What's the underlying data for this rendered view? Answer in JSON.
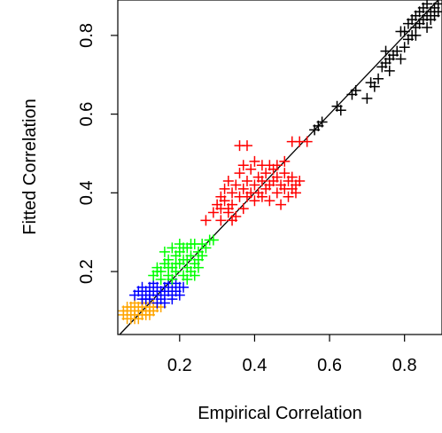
{
  "chart_data": {
    "type": "scatter",
    "title": "",
    "xlabel": "Empirical Correlation",
    "ylabel": "Fitted Correlation",
    "xlim": [
      0.035,
      0.9
    ],
    "ylim": [
      0.04,
      0.89
    ],
    "x_ticks": [
      {
        "value": 0.2,
        "label": "0.2"
      },
      {
        "value": 0.4,
        "label": "0.4"
      },
      {
        "value": 0.6,
        "label": "0.6"
      },
      {
        "value": 0.8,
        "label": "0.8"
      }
    ],
    "y_ticks": [
      {
        "value": 0.2,
        "label": "0.2"
      },
      {
        "value": 0.4,
        "label": "0.4"
      },
      {
        "value": 0.6,
        "label": "0.6"
      },
      {
        "value": 0.8,
        "label": "0.8"
      }
    ],
    "marker": "+",
    "grid": false,
    "legend": "none",
    "reference_line": {
      "slope": 1,
      "intercept": 0,
      "color": "#000000"
    },
    "series": [
      {
        "color": "#FFA500",
        "points": [
          [
            0.05,
            0.09
          ],
          [
            0.06,
            0.1
          ],
          [
            0.06,
            0.08
          ],
          [
            0.07,
            0.09
          ],
          [
            0.07,
            0.11
          ],
          [
            0.08,
            0.1
          ],
          [
            0.08,
            0.09
          ],
          [
            0.09,
            0.1
          ],
          [
            0.09,
            0.08
          ],
          [
            0.1,
            0.09
          ],
          [
            0.1,
            0.11
          ],
          [
            0.11,
            0.1
          ],
          [
            0.11,
            0.09
          ],
          [
            0.12,
            0.1
          ],
          [
            0.12,
            0.11
          ],
          [
            0.13,
            0.1
          ],
          [
            0.13,
            0.12
          ],
          [
            0.14,
            0.11
          ],
          [
            0.08,
            0.12
          ],
          [
            0.1,
            0.12
          ],
          [
            0.06,
            0.11
          ],
          [
            0.09,
            0.11
          ],
          [
            0.11,
            0.12
          ],
          [
            0.07,
            0.08
          ],
          [
            0.12,
            0.09
          ],
          [
            0.05,
            0.1
          ],
          [
            0.13,
            0.11
          ],
          [
            0.08,
            0.08
          ],
          [
            0.15,
            0.11
          ],
          [
            0.1,
            0.1
          ]
        ]
      },
      {
        "color": "#0000FF",
        "points": [
          [
            0.08,
            0.14
          ],
          [
            0.09,
            0.15
          ],
          [
            0.1,
            0.14
          ],
          [
            0.1,
            0.16
          ],
          [
            0.11,
            0.15
          ],
          [
            0.11,
            0.13
          ],
          [
            0.12,
            0.14
          ],
          [
            0.12,
            0.16
          ],
          [
            0.13,
            0.15
          ],
          [
            0.13,
            0.17
          ],
          [
            0.14,
            0.14
          ],
          [
            0.14,
            0.16
          ],
          [
            0.15,
            0.15
          ],
          [
            0.15,
            0.13
          ],
          [
            0.16,
            0.16
          ],
          [
            0.16,
            0.14
          ],
          [
            0.17,
            0.15
          ],
          [
            0.17,
            0.17
          ],
          [
            0.18,
            0.16
          ],
          [
            0.18,
            0.14
          ],
          [
            0.19,
            0.15
          ],
          [
            0.19,
            0.17
          ],
          [
            0.2,
            0.16
          ],
          [
            0.2,
            0.14
          ],
          [
            0.21,
            0.16
          ],
          [
            0.12,
            0.13
          ],
          [
            0.14,
            0.12
          ],
          [
            0.16,
            0.12
          ],
          [
            0.1,
            0.13
          ],
          [
            0.18,
            0.13
          ]
        ]
      },
      {
        "color": "#00FF00",
        "points": [
          [
            0.13,
            0.19
          ],
          [
            0.14,
            0.21
          ],
          [
            0.15,
            0.2
          ],
          [
            0.16,
            0.22
          ],
          [
            0.17,
            0.19
          ],
          [
            0.17,
            0.23
          ],
          [
            0.18,
            0.21
          ],
          [
            0.18,
            0.18
          ],
          [
            0.19,
            0.24
          ],
          [
            0.19,
            0.2
          ],
          [
            0.2,
            0.22
          ],
          [
            0.2,
            0.25
          ],
          [
            0.21,
            0.19
          ],
          [
            0.21,
            0.23
          ],
          [
            0.22,
            0.21
          ],
          [
            0.22,
            0.26
          ],
          [
            0.23,
            0.24
          ],
          [
            0.23,
            0.2
          ],
          [
            0.24,
            0.27
          ],
          [
            0.24,
            0.22
          ],
          [
            0.25,
            0.25
          ],
          [
            0.25,
            0.21
          ],
          [
            0.26,
            0.24
          ],
          [
            0.27,
            0.26
          ],
          [
            0.28,
            0.28
          ],
          [
            0.29,
            0.28
          ],
          [
            0.15,
            0.18
          ],
          [
            0.16,
            0.25
          ],
          [
            0.2,
            0.27
          ],
          [
            0.22,
            0.18
          ],
          [
            0.24,
            0.19
          ],
          [
            0.26,
            0.27
          ],
          [
            0.18,
            0.26
          ],
          [
            0.21,
            0.26
          ],
          [
            0.23,
            0.27
          ],
          [
            0.14,
            0.2
          ],
          [
            0.17,
            0.21
          ],
          [
            0.19,
            0.22
          ],
          [
            0.25,
            0.23
          ],
          [
            0.22,
            0.23
          ]
        ]
      },
      {
        "color": "#FF0000",
        "points": [
          [
            0.27,
            0.33
          ],
          [
            0.29,
            0.35
          ],
          [
            0.3,
            0.37
          ],
          [
            0.31,
            0.39
          ],
          [
            0.31,
            0.33
          ],
          [
            0.32,
            0.41
          ],
          [
            0.32,
            0.38
          ],
          [
            0.33,
            0.36
          ],
          [
            0.33,
            0.43
          ],
          [
            0.34,
            0.4
          ],
          [
            0.34,
            0.37
          ],
          [
            0.35,
            0.42
          ],
          [
            0.35,
            0.34
          ],
          [
            0.36,
            0.39
          ],
          [
            0.36,
            0.45
          ],
          [
            0.37,
            0.41
          ],
          [
            0.37,
            0.36
          ],
          [
            0.38,
            0.43
          ],
          [
            0.38,
            0.39
          ],
          [
            0.39,
            0.4
          ],
          [
            0.39,
            0.46
          ],
          [
            0.4,
            0.42
          ],
          [
            0.4,
            0.38
          ],
          [
            0.41,
            0.44
          ],
          [
            0.41,
            0.4
          ],
          [
            0.42,
            0.47
          ],
          [
            0.42,
            0.43
          ],
          [
            0.43,
            0.41
          ],
          [
            0.43,
            0.45
          ],
          [
            0.44,
            0.38
          ],
          [
            0.44,
            0.47
          ],
          [
            0.45,
            0.43
          ],
          [
            0.45,
            0.46
          ],
          [
            0.46,
            0.4
          ],
          [
            0.46,
            0.44
          ],
          [
            0.47,
            0.42
          ],
          [
            0.47,
            0.37
          ],
          [
            0.48,
            0.45
          ],
          [
            0.48,
            0.41
          ],
          [
            0.49,
            0.43
          ],
          [
            0.49,
            0.39
          ],
          [
            0.5,
            0.44
          ],
          [
            0.5,
            0.41
          ],
          [
            0.51,
            0.42
          ],
          [
            0.51,
            0.4
          ],
          [
            0.52,
            0.43
          ],
          [
            0.36,
            0.52
          ],
          [
            0.38,
            0.52
          ],
          [
            0.5,
            0.53
          ],
          [
            0.52,
            0.53
          ],
          [
            0.54,
            0.53
          ],
          [
            0.34,
            0.33
          ],
          [
            0.42,
            0.39
          ],
          [
            0.4,
            0.48
          ],
          [
            0.44,
            0.42
          ],
          [
            0.46,
            0.47
          ],
          [
            0.31,
            0.36
          ],
          [
            0.33,
            0.35
          ],
          [
            0.48,
            0.48
          ],
          [
            0.37,
            0.47
          ]
        ]
      },
      {
        "color": "#000000",
        "points": [
          [
            0.56,
            0.56
          ],
          [
            0.57,
            0.57
          ],
          [
            0.58,
            0.58
          ],
          [
            0.62,
            0.62
          ],
          [
            0.63,
            0.61
          ],
          [
            0.66,
            0.65
          ],
          [
            0.67,
            0.66
          ],
          [
            0.7,
            0.64
          ],
          [
            0.71,
            0.68
          ],
          [
            0.72,
            0.67
          ],
          [
            0.73,
            0.69
          ],
          [
            0.74,
            0.72
          ],
          [
            0.75,
            0.73
          ],
          [
            0.76,
            0.74
          ],
          [
            0.76,
            0.71
          ],
          [
            0.77,
            0.75
          ],
          [
            0.78,
            0.76
          ],
          [
            0.79,
            0.74
          ],
          [
            0.8,
            0.77
          ],
          [
            0.8,
            0.81
          ],
          [
            0.81,
            0.79
          ],
          [
            0.81,
            0.83
          ],
          [
            0.82,
            0.8
          ],
          [
            0.82,
            0.84
          ],
          [
            0.83,
            0.82
          ],
          [
            0.83,
            0.85
          ],
          [
            0.84,
            0.83
          ],
          [
            0.84,
            0.86
          ],
          [
            0.85,
            0.84
          ],
          [
            0.85,
            0.87
          ],
          [
            0.86,
            0.85
          ],
          [
            0.86,
            0.88
          ],
          [
            0.87,
            0.86
          ],
          [
            0.87,
            0.84
          ],
          [
            0.88,
            0.87
          ],
          [
            0.88,
            0.85
          ],
          [
            0.89,
            0.88
          ],
          [
            0.89,
            0.86
          ],
          [
            0.79,
            0.81
          ],
          [
            0.83,
            0.8
          ],
          [
            0.86,
            0.82
          ],
          [
            0.75,
            0.76
          ]
        ]
      }
    ]
  }
}
